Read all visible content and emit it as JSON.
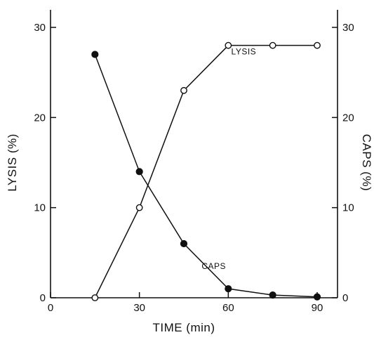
{
  "chart_data": {
    "type": "line",
    "xlabel": "TIME (min)",
    "ylabel_left": "LYSIS (%)",
    "ylabel_right": "CAPS (%)",
    "xlim": [
      0,
      95
    ],
    "ylim_left": [
      0,
      32
    ],
    "ylim_right": [
      0,
      32
    ],
    "x_ticks": [
      0,
      30,
      60,
      90
    ],
    "y_ticks_left": [
      0,
      10,
      20,
      30
    ],
    "y_ticks_right": [
      0,
      10,
      20,
      30
    ],
    "grid": false,
    "legend": "none",
    "annotations": [
      {
        "text": "LYSIS",
        "series": "LYSIS",
        "x": 61,
        "y": 27
      },
      {
        "text": "CAPS",
        "series": "CAPS",
        "x": 51,
        "y": 3.2
      }
    ],
    "series": [
      {
        "name": "LYSIS",
        "axis": "left",
        "marker": "open-circle",
        "x": [
          15,
          30,
          45,
          60,
          75,
          90
        ],
        "y": [
          0,
          10,
          23,
          28,
          28,
          28
        ]
      },
      {
        "name": "CAPS",
        "axis": "right",
        "marker": "filled-circle",
        "x": [
          15,
          30,
          45,
          60,
          75,
          90
        ],
        "y": [
          27,
          14,
          6,
          1,
          0.3,
          0.1
        ]
      }
    ]
  }
}
